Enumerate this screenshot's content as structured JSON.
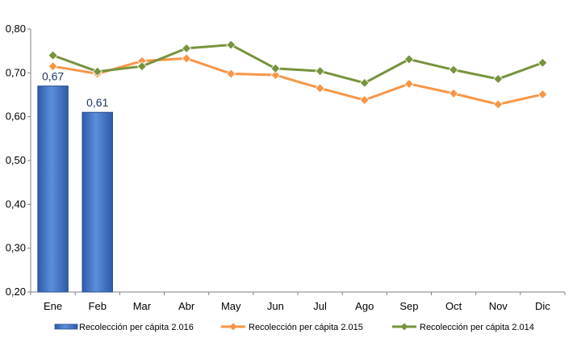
{
  "chart_data": {
    "type": "bar",
    "categories": [
      "Ene",
      "Feb",
      "Mar",
      "Abr",
      "May",
      "Jun",
      "Jul",
      "Ago",
      "Sep",
      "Oct",
      "Nov",
      "Dic"
    ],
    "ylim": [
      0.2,
      0.8
    ],
    "yticks": [
      "0,20",
      "0,30",
      "0,40",
      "0,50",
      "0,60",
      "0,70",
      "0,80"
    ],
    "grid": false,
    "legend_position": "bottom",
    "bar_series": {
      "name": "Recolección per cápita 2.016",
      "color": "#4472c4",
      "values": [
        0.67,
        0.61
      ],
      "labels": [
        "0,67",
        "0,61"
      ]
    },
    "line_series": [
      {
        "name": "Recolección per cápita 2.015",
        "color": "#f79646",
        "values": [
          0.715,
          0.698,
          0.727,
          0.733,
          0.698,
          0.695,
          0.665,
          0.638,
          0.675,
          0.653,
          0.628,
          0.651
        ]
      },
      {
        "name": "Recolección per cápita 2.014",
        "color": "#77933c",
        "values": [
          0.74,
          0.703,
          0.715,
          0.756,
          0.764,
          0.71,
          0.704,
          0.677,
          0.731,
          0.707,
          0.686,
          0.723
        ]
      }
    ]
  }
}
